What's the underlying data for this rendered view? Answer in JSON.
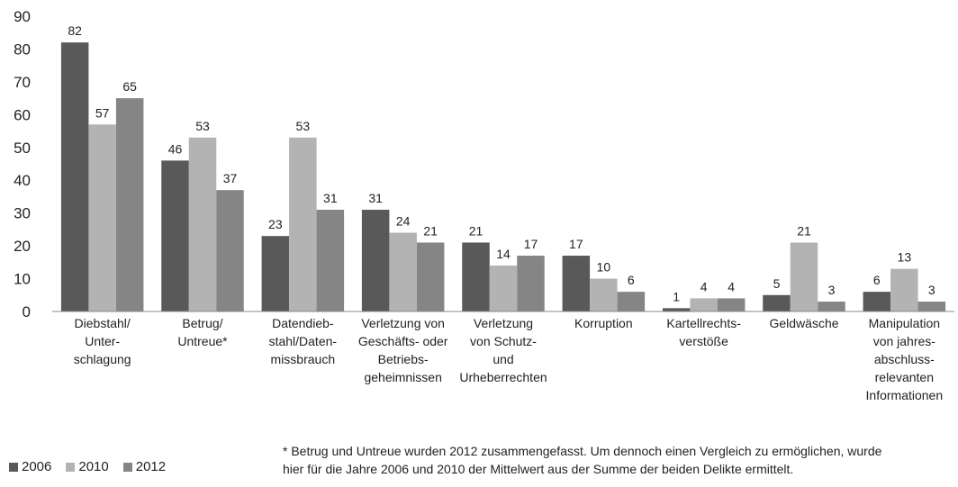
{
  "chart_data": {
    "type": "bar",
    "categories": [
      "Diebstahl/\nUnter-\nschlagung",
      "Betrug/\nUntreue*",
      "Datendieb-\nstahl/Daten-\nmissbrauch",
      "Verletzung von\nGeschäfts- oder\nBetriebs-\ngeheimnissen",
      "Verletzung\nvon Schutz-\nund\nUrheberrechten",
      "Korruption",
      "Kartellrechts-\nverstöße",
      "Geldwäsche",
      "Manipulation\nvon jahres-\nabschluss-\nrelevanten\nInformationen"
    ],
    "series": [
      {
        "name": "2006",
        "color": "#595959",
        "values": [
          82,
          46,
          23,
          31,
          21,
          17,
          1,
          5,
          6
        ]
      },
      {
        "name": "2010",
        "color": "#b3b3b3",
        "values": [
          57,
          53,
          53,
          24,
          14,
          10,
          4,
          21,
          13
        ]
      },
      {
        "name": "2012",
        "color": "#858585",
        "values": [
          65,
          37,
          31,
          21,
          17,
          6,
          4,
          3,
          3
        ]
      }
    ],
    "ylim": [
      0,
      90
    ],
    "yticks": [
      0,
      10,
      20,
      30,
      40,
      50,
      60,
      70,
      80,
      90
    ],
    "grid": false,
    "legend": "bottom-left"
  },
  "footnote": "* Betrug und Untreue wurden 2012 zusammengefasst. Um dennoch einen Vergleich zu ermöglichen, wurde\nhier für die Jahre 2006 und 2010 der Mittelwert aus der Summe der beiden Delikte ermittelt."
}
